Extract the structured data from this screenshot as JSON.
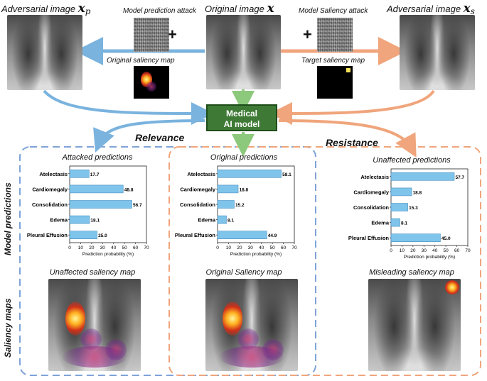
{
  "top": {
    "adv_p_title": "Adversarial image ",
    "adv_p_math": "x",
    "adv_p_sub": "p",
    "orig_title": "Original image ",
    "orig_math": "x",
    "adv_s_title": "Adversarial image ",
    "adv_s_math": "x",
    "adv_s_sub": "s",
    "pred_attack": "Model prediction attack",
    "sal_attack": "Model Saliency attack",
    "orig_sal_map": "Original saliency map",
    "target_sal_map": "Target saliency map",
    "plus": "+"
  },
  "model": {
    "line1": "Medical",
    "line2": "AI model"
  },
  "labels": {
    "relevance": "Relevance",
    "resistance": "Resistance",
    "model_predictions": "Model predictions",
    "saliency_maps": "Saliency maps"
  },
  "panels": [
    {
      "title": "Attacked predictions",
      "saliency_title": "Unaffected saliency map"
    },
    {
      "title": "Original predictions",
      "saliency_title": "Original Saliency map"
    },
    {
      "title": "Unaffected predictions",
      "saliency_title": "Misleading saliency map"
    }
  ],
  "colors": {
    "blue": "#7ab3de",
    "orange": "#f0a57c",
    "green": "#8cc97c",
    "bar": "#7fc4ea",
    "model": "#3e7a35"
  },
  "chart_data": [
    {
      "type": "bar",
      "orientation": "horizontal",
      "categories": [
        "Atelectasis",
        "Cardiomegaly",
        "Consolidation",
        "Edema",
        "Pleural Effusion"
      ],
      "values": [
        17.7,
        48.8,
        56.7,
        18.1,
        25.0
      ],
      "value_labels": [
        "17.7",
        "48.8",
        "56.7",
        "18.1",
        "25.0"
      ],
      "xlabel": "Prediction probability (%)",
      "xlim": [
        0,
        70
      ],
      "ticks": [
        "0",
        "10",
        "20",
        "30",
        "40",
        "50",
        "60",
        "70"
      ]
    },
    {
      "type": "bar",
      "orientation": "horizontal",
      "categories": [
        "Atelectasis",
        "Cardiomegaly",
        "Consolidation",
        "Edema",
        "Pleural Effusion"
      ],
      "values": [
        58.1,
        18.8,
        15.2,
        8.1,
        44.9
      ],
      "value_labels": [
        "58.1",
        "18.8",
        "15.2",
        "8.1",
        "44.9"
      ],
      "xlabel": "Prediction probability (%)",
      "xlim": [
        0,
        70
      ],
      "ticks": [
        "0",
        "10",
        "20",
        "30",
        "40",
        "50",
        "60",
        "70"
      ]
    },
    {
      "type": "bar",
      "orientation": "horizontal",
      "categories": [
        "Atelectasis",
        "Cardiomegaly",
        "Consolidation",
        "Edema",
        "Pleural Effusion"
      ],
      "values": [
        57.7,
        18.8,
        15.3,
        8.1,
        45.0
      ],
      "value_labels": [
        "57.7",
        "18.8",
        "15.3",
        "8.1",
        "45.0"
      ],
      "xlabel": "Prediction probability (%)",
      "xlim": [
        0,
        70
      ],
      "ticks": [
        "0",
        "10",
        "20",
        "30",
        "40",
        "50",
        "60",
        "70"
      ]
    }
  ]
}
